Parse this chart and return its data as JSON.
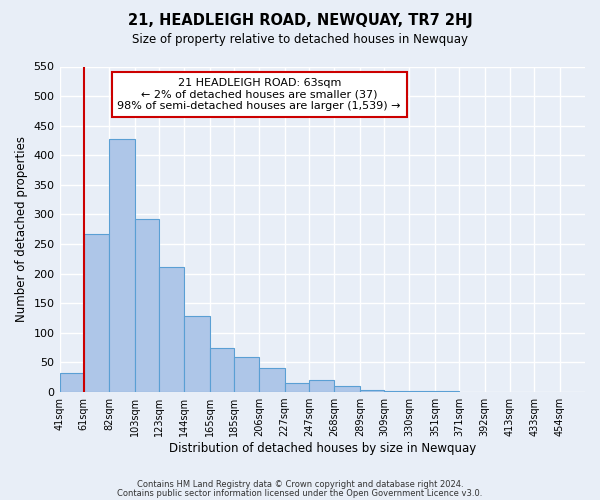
{
  "title": "21, HEADLEIGH ROAD, NEWQUAY, TR7 2HJ",
  "subtitle": "Size of property relative to detached houses in Newquay",
  "xlabel": "Distribution of detached houses by size in Newquay",
  "ylabel": "Number of detached properties",
  "bar_values": [
    32,
    267,
    428,
    292,
    212,
    129,
    75,
    59,
    40,
    15,
    20,
    10,
    3,
    2,
    2,
    1
  ],
  "bin_labels": [
    "41sqm",
    "61sqm",
    "82sqm",
    "103sqm",
    "123sqm",
    "144sqm",
    "165sqm",
    "185sqm",
    "206sqm",
    "227sqm",
    "247sqm",
    "268sqm",
    "289sqm",
    "309sqm",
    "330sqm",
    "351sqm",
    "371sqm",
    "392sqm",
    "413sqm",
    "433sqm",
    "454sqm"
  ],
  "bar_color": "#aec6e8",
  "bar_edge_color": "#5a9fd4",
  "vline_color": "#cc0000",
  "annotation_text": "21 HEADLEIGH ROAD: 63sqm\n← 2% of detached houses are smaller (37)\n98% of semi-detached houses are larger (1,539) →",
  "annotation_box_color": "#ffffff",
  "annotation_box_edge_color": "#cc0000",
  "ylim": [
    0,
    550
  ],
  "yticks": [
    0,
    50,
    100,
    150,
    200,
    250,
    300,
    350,
    400,
    450,
    500,
    550
  ],
  "footer1": "Contains HM Land Registry data © Crown copyright and database right 2024.",
  "footer2": "Contains public sector information licensed under the Open Government Licence v3.0.",
  "background_color": "#e8eef7",
  "grid_color": "#ffffff"
}
